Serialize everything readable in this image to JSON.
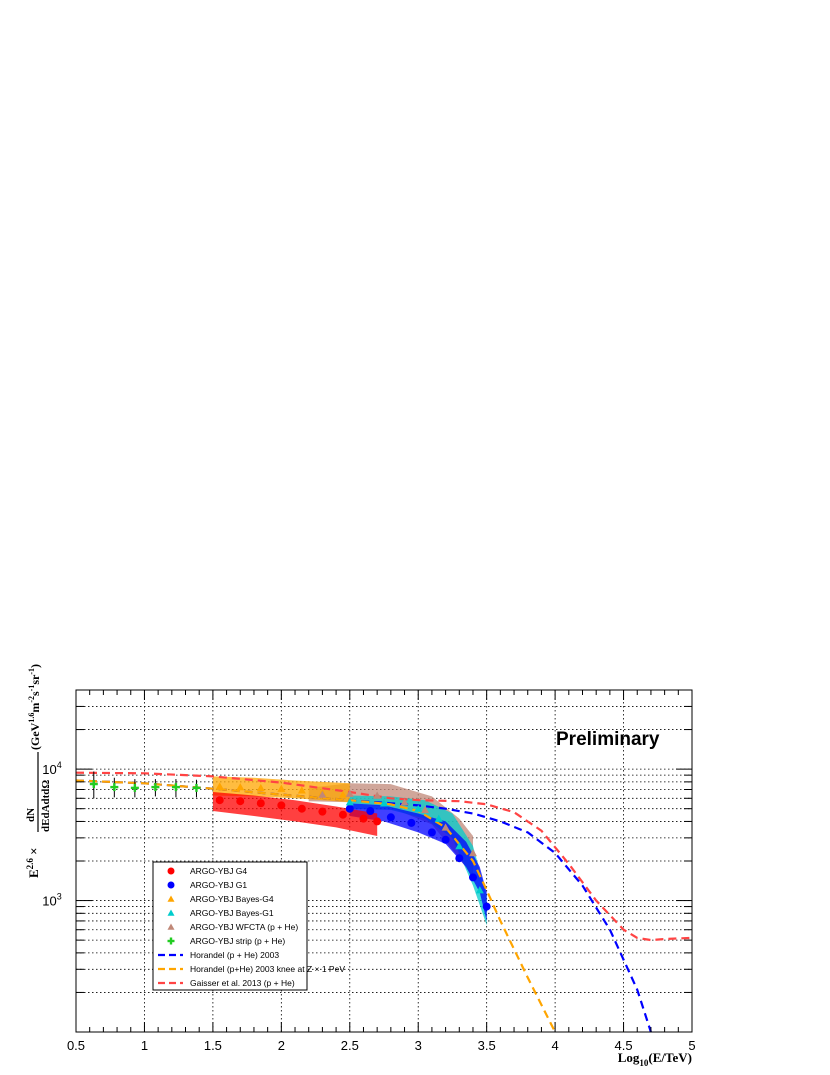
{
  "chart_data": {
    "type": "scatter",
    "annotation": "Preliminary",
    "xlabel": "Log10(E/TeV)",
    "ylabel": "E^2.6 × dN/dEdAdtdΩ (GeV^1.6 m^-2 s^-1 sr^-1)",
    "xlim": [
      0.5,
      5
    ],
    "ylim": [
      100,
      40000
    ],
    "yscale": "log",
    "grid": true,
    "legend_position": "bottom-left",
    "x_ticks": [
      "0.5",
      "1",
      "1.5",
      "2",
      "2.5",
      "3",
      "3.5",
      "4",
      "4.5",
      "5"
    ],
    "y_ticks": [
      {
        "label": "10",
        "exp": "3",
        "value": 1000
      },
      {
        "label": "10",
        "exp": "4",
        "value": 10000
      }
    ],
    "series": [
      {
        "name": "ARGO-YBJ G4",
        "marker": "circle",
        "color": "#ff0000",
        "points": [
          [
            1.55,
            5800
          ],
          [
            1.7,
            5700
          ],
          [
            1.85,
            5500
          ],
          [
            2.0,
            5300
          ],
          [
            2.15,
            5000
          ],
          [
            2.3,
            4750
          ],
          [
            2.45,
            4500
          ],
          [
            2.6,
            4200
          ],
          [
            2.7,
            4000
          ]
        ],
        "band": {
          "x": [
            1.5,
            1.8,
            2.1,
            2.4,
            2.7
          ],
          "low": [
            4800,
            4400,
            4000,
            3600,
            3100
          ],
          "high": [
            6700,
            6300,
            5800,
            5200,
            4600
          ]
        }
      },
      {
        "name": "ARGO-YBJ G1",
        "marker": "circle",
        "color": "#0000ff",
        "points": [
          [
            2.5,
            5000
          ],
          [
            2.65,
            4800
          ],
          [
            2.8,
            4300
          ],
          [
            2.95,
            3900
          ],
          [
            3.1,
            3300
          ],
          [
            3.2,
            2900
          ],
          [
            3.3,
            2100
          ],
          [
            3.4,
            1500
          ],
          [
            3.5,
            900
          ]
        ],
        "band": {
          "x": [
            2.5,
            2.75,
            3.0,
            3.2,
            3.35,
            3.45,
            3.5
          ],
          "low": [
            4400,
            4000,
            3300,
            2700,
            1800,
            1150,
            700
          ],
          "high": [
            5500,
            5300,
            4600,
            4000,
            2800,
            1800,
            1150
          ]
        }
      },
      {
        "name": "ARGO-YBJ Bayes-G4",
        "marker": "triangle",
        "color": "#ffa500",
        "points": [
          [
            1.55,
            7400
          ],
          [
            1.7,
            7300
          ],
          [
            1.85,
            7200
          ],
          [
            2.0,
            7100
          ],
          [
            2.15,
            6900
          ],
          [
            2.3,
            6600
          ],
          [
            2.45,
            6400
          ]
        ],
        "band": {
          "x": [
            1.5,
            1.8,
            2.1,
            2.5
          ],
          "low": [
            6300,
            6200,
            6000,
            5600
          ],
          "high": [
            8800,
            8600,
            8200,
            7800
          ]
        }
      },
      {
        "name": "ARGO-YBJ Bayes-G1",
        "marker": "triangle",
        "color": "#00cccc",
        "points": [
          [
            2.5,
            5600
          ],
          [
            2.75,
            5500
          ],
          [
            3.0,
            5000
          ],
          [
            3.15,
            4200
          ],
          [
            3.3,
            2600
          ],
          [
            3.45,
            1200
          ]
        ],
        "band": {
          "x": [
            2.5,
            2.8,
            3.05,
            3.25,
            3.4,
            3.5
          ],
          "low": [
            5000,
            4900,
            4200,
            3000,
            1300,
            650
          ],
          "high": [
            6300,
            6200,
            5800,
            4600,
            2600,
            1100
          ]
        }
      },
      {
        "name": "ARGO-YBJ WFCTA (p + He)",
        "marker": "triangle",
        "color": "#c08878",
        "points": [
          [
            2.3,
            6400
          ],
          [
            2.5,
            6500
          ],
          [
            2.7,
            6300
          ],
          [
            2.9,
            5600
          ],
          [
            3.05,
            4900
          ],
          [
            3.2,
            3600
          ],
          [
            3.4,
            2300
          ]
        ],
        "band": {
          "x": [
            2.2,
            2.5,
            2.8,
            3.1,
            3.3,
            3.4
          ],
          "low": [
            5700,
            5600,
            5100,
            3800,
            2100,
            1500
          ],
          "high": [
            7200,
            7800,
            7700,
            6200,
            4200,
            3100
          ]
        }
      },
      {
        "name": "ARGO-YBJ strip (p + He)",
        "marker": "cross",
        "color": "#22cc22",
        "points": [
          [
            0.63,
            7700
          ],
          [
            0.78,
            7300
          ],
          [
            0.93,
            7200
          ],
          [
            1.08,
            7300
          ],
          [
            1.23,
            7300
          ],
          [
            1.38,
            7200
          ]
        ],
        "errors_low": [
          6000,
          6100,
          6100,
          6200,
          6100,
          6100
        ],
        "errors_high": [
          9600,
          8600,
          8400,
          8400,
          8400,
          8300
        ]
      },
      {
        "name": "Horandel (p + He) 2003",
        "line": "dashed",
        "color": "#0000ff",
        "x": [
          0.5,
          1.0,
          1.5,
          2.0,
          2.5,
          2.8,
          3.0,
          3.2,
          3.4,
          3.6,
          3.8,
          4.0,
          4.2,
          4.4,
          4.6,
          4.7
        ],
        "y": [
          8200,
          7800,
          7100,
          6400,
          5800,
          5500,
          5300,
          5000,
          4600,
          4000,
          3300,
          2300,
          1300,
          600,
          210,
          100
        ]
      },
      {
        "name": "Horandel (p+He) 2003 knee at Z × 1 PeV",
        "line": "dashed",
        "color": "#ffa500",
        "x": [
          0.5,
          1.0,
          1.5,
          2.0,
          2.5,
          2.8,
          3.0,
          3.2,
          3.4,
          3.5,
          3.6,
          3.8,
          4.0
        ],
        "y": [
          8200,
          7800,
          7100,
          6400,
          5800,
          5400,
          4800,
          3600,
          2000,
          1200,
          700,
          260,
          100
        ]
      },
      {
        "name": "Gaisser et al. 2013 (p + He)",
        "line": "dashed",
        "color": "#ff4444",
        "x": [
          0.5,
          1.0,
          1.5,
          2.0,
          2.5,
          2.8,
          3.0,
          3.3,
          3.5,
          3.7,
          3.9,
          4.1,
          4.3,
          4.5,
          4.6,
          4.7,
          4.8,
          5.0
        ],
        "y": [
          9400,
          9300,
          8800,
          7900,
          6700,
          6000,
          5800,
          5700,
          5400,
          4700,
          3400,
          1900,
          1000,
          600,
          520,
          500,
          510,
          520
        ]
      }
    ]
  }
}
